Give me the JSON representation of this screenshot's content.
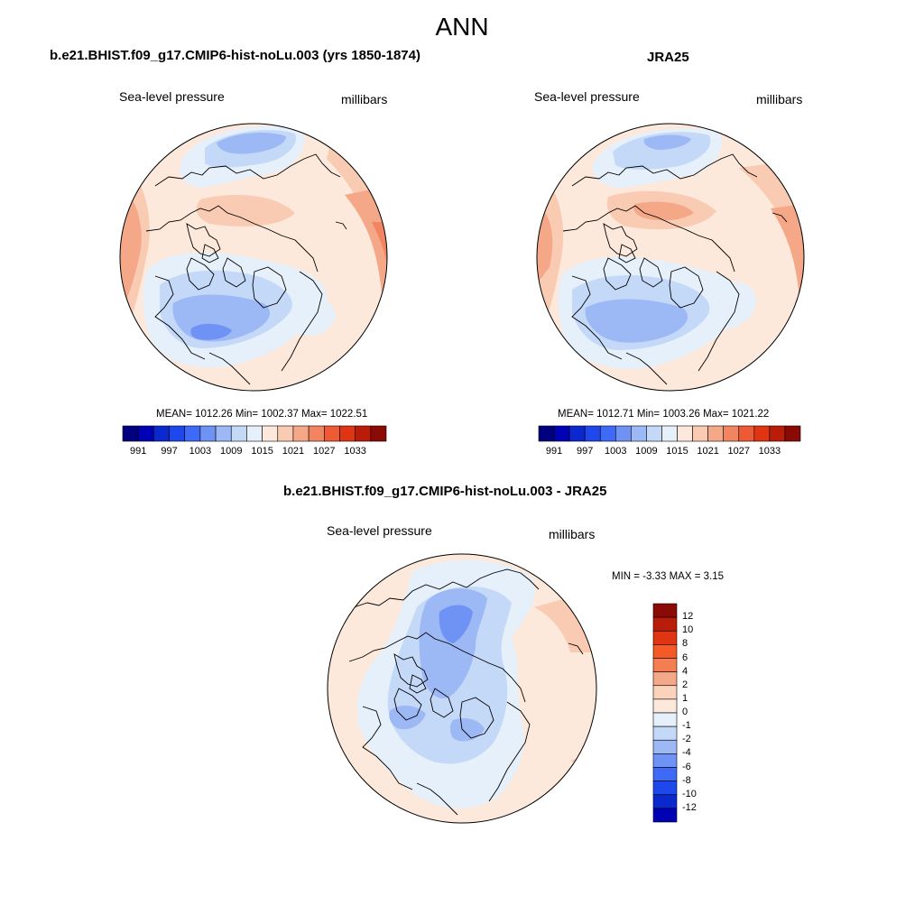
{
  "title": "ANN",
  "panels": [
    {
      "title": "b.e21.BHIST.f09_g17.CMIP6-hist-noLu.003 (yrs 1850-1874)",
      "field": "Sea-level pressure",
      "units": "millibars",
      "stats": "MEAN= 1012.26  Min= 1002.37  Max= 1022.51"
    },
    {
      "title": "JRA25",
      "field": "Sea-level pressure",
      "units": "millibars",
      "stats": "MEAN= 1012.71  Min= 1003.26  Max= 1021.22"
    },
    {
      "title": "b.e21.BHIST.f09_g17.CMIP6-hist-noLu.003 - JRA25",
      "field": "Sea-level pressure",
      "units": "millibars",
      "stats": "MIN =  -3.33 MAX =   3.15"
    }
  ],
  "colorbar_abs": {
    "tick_labels": [
      "991",
      "997",
      "1003",
      "1009",
      "1015",
      "1021",
      "1027",
      "1033"
    ],
    "colors": [
      "#00007e",
      "#0000b4",
      "#0b28cf",
      "#1e48ec",
      "#3e6af7",
      "#6e93f5",
      "#9cb8f5",
      "#c4d8f8",
      "#e6f0fa",
      "#fde9dc",
      "#f9cbb3",
      "#f5a888",
      "#f18562",
      "#ec5a36",
      "#df3512",
      "#b91d0a",
      "#8a0a05"
    ]
  },
  "colorbar_diff": {
    "tick_labels": [
      "12",
      "10",
      "8",
      "6",
      "4",
      "2",
      "1",
      "0",
      "-1",
      "-2",
      "-4",
      "-6",
      "-8",
      "-10",
      "-12"
    ],
    "colors_top_to_bottom": [
      "#8a0a05",
      "#b91d0a",
      "#df3512",
      "#f55a26",
      "#f47d52",
      "#f5a888",
      "#fbd3bb",
      "#fde9dc",
      "#e6f0fa",
      "#c4d8f8",
      "#9cb8f5",
      "#6e93f5",
      "#3e6af7",
      "#1e48ec",
      "#0b28cf",
      "#0000b4"
    ]
  },
  "chart_data": {
    "type": "heatmap",
    "title": "ANN",
    "variable": "Sea-level pressure",
    "units": "millibars",
    "projection": "north polar stereographic",
    "maps": [
      {
        "name": "b.e21.BHIST.f09_g17.CMIP6-hist-noLu.003 (yrs 1850-1874)",
        "mean": 1012.26,
        "min": 1002.37,
        "max": 1022.51
      },
      {
        "name": "JRA25",
        "mean": 1012.71,
        "min": 1003.26,
        "max": 1021.22
      },
      {
        "name": "b.e21.BHIST.f09_g17.CMIP6-hist-noLu.003 - JRA25",
        "min": -3.33,
        "max": 3.15
      }
    ],
    "abs_levels": [
      991,
      994,
      997,
      1000,
      1003,
      1006,
      1009,
      1012,
      1015,
      1018,
      1021,
      1024,
      1027,
      1030,
      1033,
      1036
    ],
    "diff_levels": [
      -12,
      -10,
      -8,
      -6,
      -4,
      -2,
      -1,
      0,
      1,
      2,
      4,
      6,
      8,
      10,
      12
    ]
  }
}
